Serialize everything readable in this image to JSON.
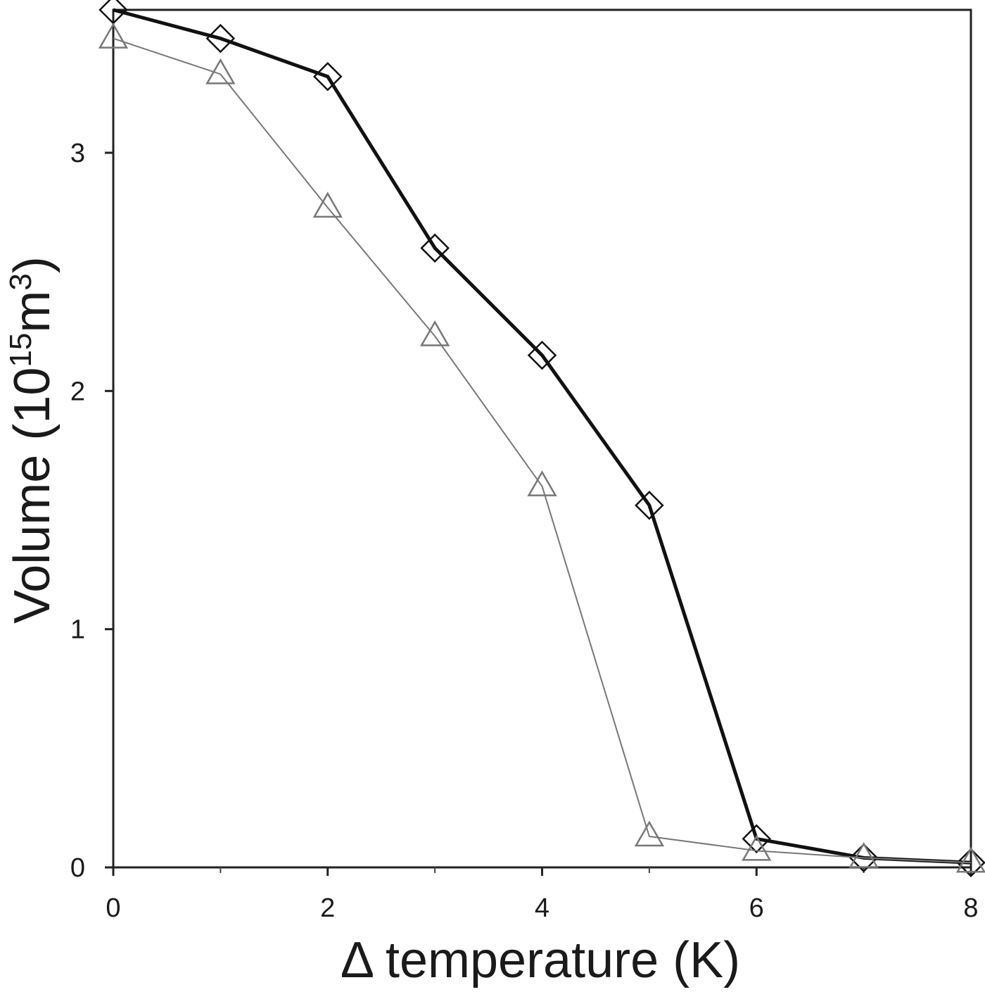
{
  "chart_data": {
    "type": "line",
    "title": "",
    "xlabel": "Δ temperature (K)",
    "ylabel": {
      "prefix": "Volume (10",
      "exponent": "15",
      "middle": "m",
      "unit_exponent": "3",
      "suffix": ")"
    },
    "xlim": [
      0,
      8
    ],
    "ylim": [
      0,
      3.6
    ],
    "xticks": [
      0,
      2,
      4,
      6,
      8
    ],
    "xticks_minor": [
      1,
      3,
      5,
      7
    ],
    "yticks": [
      0,
      1,
      2,
      3
    ],
    "grid": false,
    "legend": "none",
    "x": [
      0,
      1,
      2,
      3,
      4,
      5,
      6,
      7,
      8
    ],
    "series": [
      {
        "marker": "diamond",
        "color": "#111111",
        "line_style": "thick",
        "values": [
          3.6,
          3.48,
          3.32,
          2.6,
          2.15,
          1.52,
          0.12,
          0.04,
          0.02
        ]
      },
      {
        "marker": "triangle",
        "color": "#777777",
        "line_style": "thin",
        "values": [
          3.48,
          3.33,
          2.77,
          2.23,
          1.6,
          0.13,
          0.07,
          0.04,
          0.02
        ]
      }
    ]
  }
}
